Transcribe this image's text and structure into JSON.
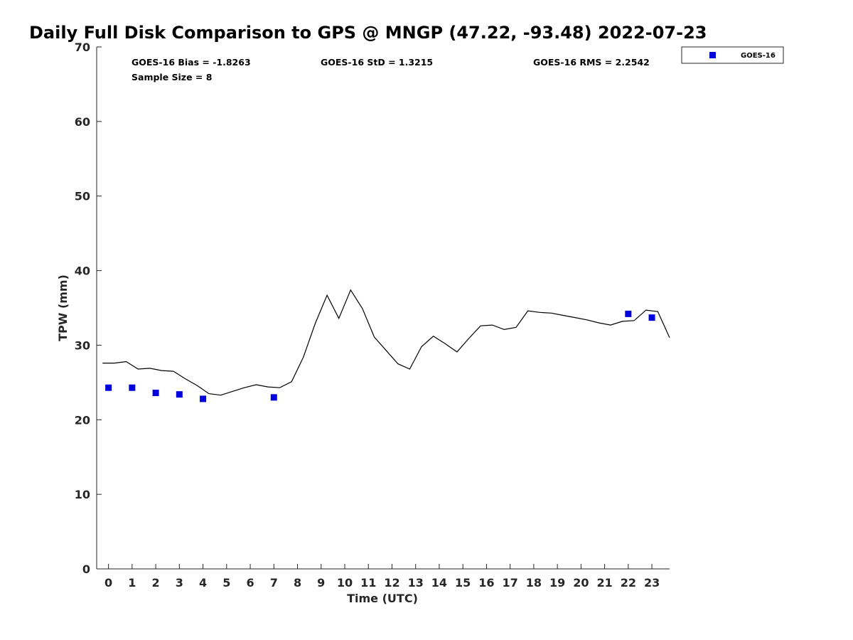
{
  "chart_data": {
    "type": "scatter",
    "title": "Daily Full Disk Comparison to GPS @ MNGP (47.22, -93.48) 2022-07-23",
    "xlabel": "Time (UTC)",
    "ylabel": "TPW (mm)",
    "xlim": [
      -0.5,
      23.75
    ],
    "ylim": [
      0,
      70
    ],
    "x_ticks": [
      "0",
      "1",
      "2",
      "3",
      "4",
      "5",
      "6",
      "7",
      "8",
      "9",
      "10",
      "11",
      "12",
      "13",
      "14",
      "15",
      "16",
      "17",
      "18",
      "19",
      "20",
      "21",
      "22",
      "23"
    ],
    "y_ticks": [
      "0",
      "10",
      "20",
      "30",
      "40",
      "50",
      "60",
      "70"
    ],
    "grid": false,
    "legend_position": "outside top-right",
    "stats": {
      "bias": "GOES-16 Bias = -1.8263",
      "sample_size": "Sample Size = 8",
      "std": "GOES-16 StD = 1.3215",
      "rms": "GOES-16 RMS = 2.2542"
    },
    "series": [
      {
        "name": "GOES-16",
        "type": "scatter",
        "marker": "square",
        "color": "#0000dd",
        "points": [
          [
            0,
            24.3
          ],
          [
            1,
            24.3
          ],
          [
            2,
            23.6
          ],
          [
            3,
            23.4
          ],
          [
            4,
            22.8
          ],
          [
            7,
            23.0
          ],
          [
            22,
            34.2
          ],
          [
            23,
            33.7
          ]
        ]
      },
      {
        "type": "line",
        "color": "#000000",
        "points": [
          [
            -0.25,
            27.6
          ],
          [
            0.25,
            27.6
          ],
          [
            0.75,
            27.8
          ],
          [
            1.25,
            26.8
          ],
          [
            1.75,
            26.9
          ],
          [
            2.25,
            26.6
          ],
          [
            2.75,
            26.5
          ],
          [
            3.25,
            25.5
          ],
          [
            3.75,
            24.6
          ],
          [
            4.25,
            23.5
          ],
          [
            4.75,
            23.3
          ],
          [
            5.25,
            23.8
          ],
          [
            5.75,
            24.3
          ],
          [
            6.25,
            24.7
          ],
          [
            6.75,
            24.4
          ],
          [
            7.25,
            24.3
          ],
          [
            7.75,
            25.1
          ],
          [
            8.25,
            28.4
          ],
          [
            8.75,
            32.9
          ],
          [
            9.25,
            36.7
          ],
          [
            9.75,
            33.6
          ],
          [
            10.25,
            37.4
          ],
          [
            10.75,
            34.9
          ],
          [
            11.25,
            31.1
          ],
          [
            11.75,
            29.3
          ],
          [
            12.25,
            27.5
          ],
          [
            12.75,
            26.8
          ],
          [
            13.25,
            29.8
          ],
          [
            13.75,
            31.2
          ],
          [
            14.25,
            30.2
          ],
          [
            14.75,
            29.1
          ],
          [
            15.25,
            30.9
          ],
          [
            15.75,
            32.6
          ],
          [
            16.25,
            32.7
          ],
          [
            16.75,
            32.1
          ],
          [
            17.25,
            32.4
          ],
          [
            17.75,
            34.6
          ],
          [
            18.25,
            34.4
          ],
          [
            18.75,
            34.3
          ],
          [
            19.25,
            34.0
          ],
          [
            19.75,
            33.7
          ],
          [
            20.25,
            33.4
          ],
          [
            20.75,
            33.0
          ],
          [
            21.25,
            32.7
          ],
          [
            21.75,
            33.2
          ],
          [
            22.25,
            33.3
          ],
          [
            22.75,
            34.7
          ],
          [
            23.25,
            34.5
          ],
          [
            23.75,
            31.0
          ]
        ]
      }
    ]
  }
}
